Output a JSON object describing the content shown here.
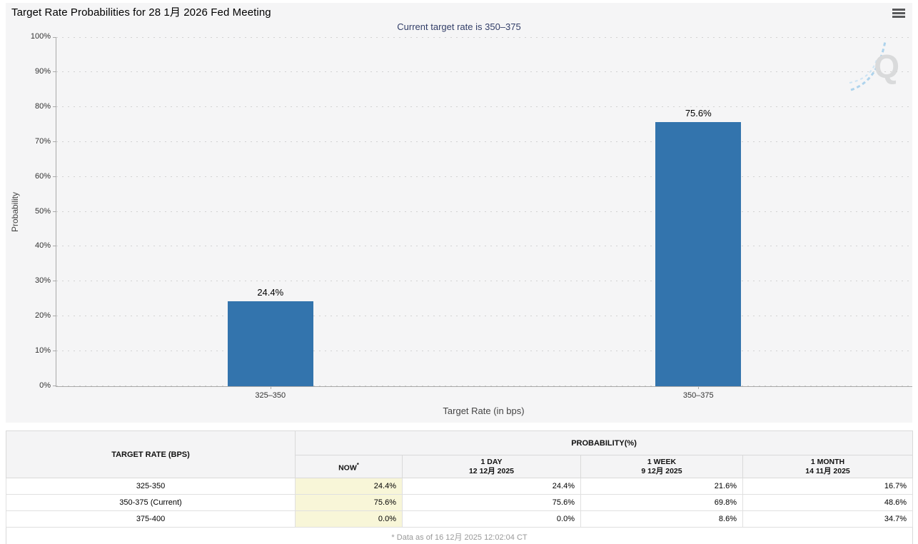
{
  "header": {
    "title": "Target Rate Probabilities for 28 1月 2026 Fed Meeting"
  },
  "chart": {
    "subtitle": "Current target rate is 350–375",
    "watermark_letter": "Q"
  },
  "chart_data": {
    "type": "bar",
    "title": "Current target rate is 350–375",
    "categories": [
      "325–350",
      "350–375"
    ],
    "values": [
      24.4,
      75.6
    ],
    "bar_labels": [
      "24.4%",
      "75.6%"
    ],
    "xlabel": "Target Rate (in bps)",
    "ylabel": "Probability",
    "ylim": [
      0,
      100
    ],
    "ytick_step": 10,
    "ytick_labels": [
      "0%",
      "10%",
      "20%",
      "30%",
      "40%",
      "50%",
      "60%",
      "70%",
      "80%",
      "90%",
      "100%"
    ],
    "grid": "horizontal-dotted",
    "legend": "none",
    "bar_color": "#3374ad"
  },
  "table": {
    "group_headers": {
      "target_rate": "TARGET RATE (BPS)",
      "probability": "PROBABILITY(%)"
    },
    "columns": [
      {
        "label": "NOW",
        "note_marker": "*"
      },
      {
        "label": "1 DAY",
        "date": "12 12月 2025"
      },
      {
        "label": "1 WEEK",
        "date": "9 12月 2025"
      },
      {
        "label": "1 MONTH",
        "date": "14 11月 2025"
      }
    ],
    "rows": [
      {
        "target": "325-350",
        "now": "24.4%",
        "one_day": "24.4%",
        "one_week": "21.6%",
        "one_month": "16.7%"
      },
      {
        "target": "350-375 (Current)",
        "now": "75.6%",
        "one_day": "75.6%",
        "one_week": "69.8%",
        "one_month": "48.6%"
      },
      {
        "target": "375-400",
        "now": "0.0%",
        "one_day": "0.0%",
        "one_week": "8.6%",
        "one_month": "34.7%"
      }
    ],
    "footnote": "* Data as of 16 12月 2025 12:02:04 CT"
  },
  "colors": {
    "bar": "#3374ad",
    "subtitle_text": "#323e68",
    "now_column_bg": "#f8f6d8",
    "panel_bg": "#f5f5f6",
    "header_bg": "#f4f4f5",
    "watermark_blue": "#aed3ec",
    "watermark_gray": "#d9dadb"
  }
}
